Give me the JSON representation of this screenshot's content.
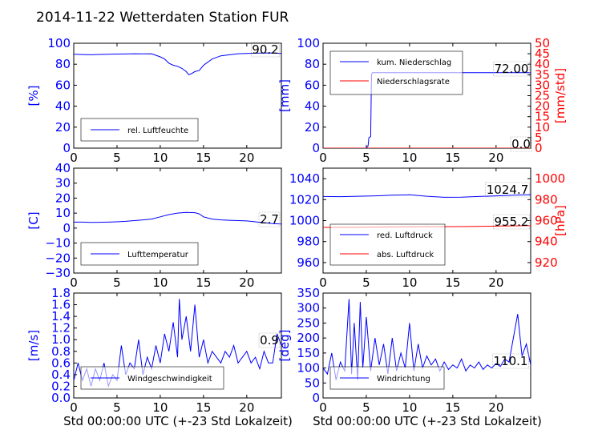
{
  "title": "2014-11-22 Wetterdaten Station FUR",
  "xlabel": "Std 00:00:00 UTC (+-23 Std Lokalzeit)",
  "chart_data": [
    {
      "id": "humidity",
      "type": "line",
      "ylabel": "[%]",
      "ylim": [
        0,
        100
      ],
      "yticks": [
        "0",
        "20",
        "40",
        "60",
        "80",
        "100"
      ],
      "xlim": [
        0,
        24
      ],
      "xticks": [
        "0",
        "5",
        "10",
        "15",
        "20"
      ],
      "legend": "lower-left",
      "series": [
        {
          "name": "rel. Luftfeuchte",
          "color": "#0000ff",
          "x": [
            0,
            1,
            2,
            3,
            4,
            5,
            6,
            7,
            8,
            9,
            10,
            10.5,
            11,
            11.5,
            12,
            12.5,
            13,
            13.3,
            13.6,
            14,
            14.5,
            15,
            16,
            17,
            18,
            19,
            20,
            21,
            22,
            23,
            24
          ],
          "y": [
            89.5,
            89.2,
            89.0,
            89.3,
            89.5,
            89.7,
            89.8,
            90.0,
            89.9,
            90.0,
            87,
            85,
            81,
            79,
            78,
            76,
            73,
            70,
            71,
            73,
            74,
            79,
            85,
            88,
            89,
            90,
            90.2,
            90.5,
            90.6,
            90.8,
            90.2
          ]
        }
      ],
      "annotations": [
        {
          "text": "90.2"
        }
      ]
    },
    {
      "id": "precip",
      "type": "line",
      "ylabel": "[mm]",
      "ylabel_right": "[mm/std]",
      "ylim": [
        0,
        100
      ],
      "ylim_right": [
        0,
        50
      ],
      "yticks": [
        "0",
        "20",
        "40",
        "60",
        "80",
        "100"
      ],
      "yticks_right": [
        "0",
        "5",
        "10",
        "15",
        "20",
        "25",
        "30",
        "35",
        "40",
        "45",
        "50"
      ],
      "xlim": [
        0,
        24
      ],
      "xticks": [
        "0",
        "5",
        "10",
        "15",
        "20"
      ],
      "legend": "upper-left",
      "series": [
        {
          "name": "kum. Niederschlag",
          "color": "#0000ff",
          "axis": "left",
          "x": [
            0,
            5.0,
            5.2,
            5.3,
            5.5,
            5.6,
            5.7,
            24
          ],
          "y": [
            0,
            0,
            2,
            10,
            11,
            70,
            72,
            72
          ]
        },
        {
          "name": "Niederschlagsrate",
          "color": "#ff0000",
          "axis": "right",
          "x": [
            0,
            24
          ],
          "y": [
            0,
            0
          ]
        }
      ],
      "annotations": [
        {
          "text": "72.00"
        },
        {
          "text": "0.0"
        }
      ]
    },
    {
      "id": "temp",
      "type": "line",
      "ylabel": "[C]",
      "ylim": [
        -30,
        40
      ],
      "yticks": [
        "−30",
        "−20",
        "−10",
        "0",
        "10",
        "20",
        "30",
        "40"
      ],
      "xlim": [
        0,
        24
      ],
      "xticks": [
        "0",
        "5",
        "10",
        "15",
        "20"
      ],
      "legend": "lower-left",
      "series": [
        {
          "name": "Lufttemperatur",
          "color": "#0000ff",
          "x": [
            0,
            1,
            2,
            3,
            4,
            5,
            6,
            7,
            8,
            9,
            10,
            11,
            12,
            13,
            14,
            14.5,
            15,
            16,
            17,
            18,
            19,
            20,
            21,
            22,
            23,
            24
          ],
          "y": [
            4,
            4,
            3.8,
            3.9,
            4,
            4.2,
            4.5,
            5,
            5.5,
            6,
            7.5,
            9,
            10,
            10.5,
            10.3,
            9.5,
            7.5,
            6,
            5.5,
            5.2,
            5,
            4.8,
            4.2,
            3.5,
            3,
            2.7
          ]
        }
      ],
      "annotations": [
        {
          "text": "2.7"
        }
      ]
    },
    {
      "id": "pressure",
      "type": "line",
      "ylabel_right": "[hPa]",
      "ylim": [
        950,
        1050
      ],
      "ylim_right": [
        910,
        1010
      ],
      "yticks": [
        "960",
        "980",
        "1000",
        "1020",
        "1040"
      ],
      "yticks_right": [
        "920",
        "940",
        "960",
        "980",
        "1000"
      ],
      "xlim": [
        0,
        24
      ],
      "xticks": [
        "0",
        "5",
        "10",
        "15",
        "20"
      ],
      "legend": "lower-left",
      "series": [
        {
          "name": "red. Luftdruck",
          "color": "#0000ff",
          "axis": "left",
          "x": [
            0,
            2,
            4,
            6,
            8,
            10,
            12,
            14,
            16,
            18,
            20,
            22,
            24
          ],
          "y": [
            1023,
            1022.8,
            1023.2,
            1023.6,
            1024.2,
            1024.6,
            1023.2,
            1022.2,
            1022.3,
            1023,
            1023.6,
            1024.2,
            1024.7
          ]
        },
        {
          "name": "abs. Luftdruck",
          "color": "#ff0000",
          "axis": "right",
          "x": [
            0,
            4,
            8,
            12,
            16,
            20,
            24
          ],
          "y": [
            953.5,
            953.6,
            954.0,
            954.2,
            954.3,
            954.7,
            955.2
          ]
        }
      ],
      "annotations": [
        {
          "text": "1024.7"
        },
        {
          "text": "955.2"
        }
      ]
    },
    {
      "id": "wind",
      "type": "line",
      "ylabel": "[m/s]",
      "ylim": [
        0,
        1.8
      ],
      "yticks": [
        "0.0",
        "0.2",
        "0.4",
        "0.6",
        "0.8",
        "1.0",
        "1.2",
        "1.4",
        "1.6",
        "1.8"
      ],
      "xlim": [
        0,
        24
      ],
      "xticks": [
        "0",
        "5",
        "10",
        "15",
        "20"
      ],
      "legend": "lower-center",
      "series": [
        {
          "name": "Windgeschwindigkeit",
          "color": "#0000ff",
          "x": [
            0,
            0.5,
            1,
            1.5,
            2,
            2.5,
            3,
            3.5,
            4,
            4.5,
            5,
            5.5,
            6,
            6.5,
            7,
            7.5,
            8,
            8.5,
            9,
            9.5,
            10,
            10.5,
            11,
            11.5,
            12,
            12.2,
            12.5,
            13,
            13.5,
            14,
            14.5,
            15,
            15.5,
            16,
            16.5,
            17,
            17.5,
            18,
            18.5,
            19,
            19.5,
            20,
            20.5,
            21,
            21.5,
            22,
            22.5,
            23,
            23.5,
            24
          ],
          "y": [
            0.3,
            0.6,
            0.3,
            0.5,
            0.2,
            0.5,
            0.3,
            0.6,
            0.2,
            0.4,
            0.3,
            0.9,
            0.4,
            0.6,
            0.5,
            1.0,
            0.4,
            0.7,
            0.5,
            0.9,
            0.6,
            1.1,
            0.8,
            1.3,
            0.7,
            1.7,
            1.0,
            1.4,
            0.8,
            1.6,
            0.7,
            1.0,
            0.6,
            0.8,
            0.7,
            0.6,
            0.8,
            0.7,
            0.9,
            0.6,
            0.7,
            0.8,
            0.6,
            0.7,
            0.5,
            0.8,
            0.6,
            0.6,
            1.1,
            0.9
          ]
        }
      ],
      "annotations": [
        {
          "text": "0.9"
        }
      ]
    },
    {
      "id": "winddir",
      "type": "line",
      "ylabel": "[deg]",
      "ylim": [
        0,
        350
      ],
      "yticks": [
        "0",
        "50",
        "100",
        "150",
        "200",
        "250",
        "300",
        "350"
      ],
      "xlim": [
        0,
        24
      ],
      "xticks": [
        "0",
        "5",
        "10",
        "15",
        "20"
      ],
      "legend": "lower-left",
      "series": [
        {
          "name": "Windrichtung",
          "color": "#0000ff",
          "x": [
            0,
            0.5,
            1,
            1.5,
            2,
            2.5,
            3,
            3.3,
            3.6,
            4,
            4.3,
            4.6,
            5,
            5.5,
            6,
            6.5,
            7,
            7.5,
            8,
            8.5,
            9,
            9.5,
            10,
            10.5,
            11,
            11.5,
            12,
            12.5,
            13,
            13.5,
            14,
            14.5,
            15,
            15.5,
            16,
            16.5,
            17,
            17.5,
            18,
            18.5,
            19,
            19.5,
            20,
            20.5,
            21,
            21.5,
            22,
            22.5,
            23,
            23.5,
            24
          ],
          "y": [
            100,
            80,
            150,
            60,
            120,
            90,
            330,
            80,
            250,
            60,
            320,
            100,
            270,
            90,
            200,
            110,
            180,
            80,
            200,
            90,
            150,
            100,
            250,
            90,
            180,
            100,
            140,
            110,
            130,
            90,
            120,
            95,
            110,
            100,
            130,
            90,
            110,
            100,
            120,
            95,
            110,
            100,
            115,
            105,
            130,
            120,
            200,
            280,
            140,
            180,
            110
          ]
        }
      ],
      "annotations": [
        {
          "text": "110.1"
        }
      ]
    }
  ]
}
